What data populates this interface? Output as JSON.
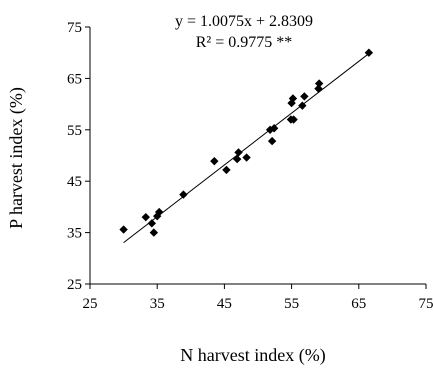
{
  "chart_data": {
    "type": "scatter",
    "xlabel": "N harvest index (%)",
    "ylabel": "P harvest index (%)",
    "xlim": [
      25,
      75
    ],
    "ylim": [
      25,
      75
    ],
    "xticks": [
      "25",
      "35",
      "45",
      "55",
      "65",
      "75"
    ],
    "yticks": [
      "25",
      "35",
      "45",
      "55",
      "65",
      "75"
    ],
    "grid": false,
    "legend": "none",
    "annotations": {
      "equation": "y = 1.0075x + 2.8309",
      "r2": "R² = 0.9775 **"
    },
    "series": [
      {
        "marker": "diamond",
        "color": "#000000",
        "points": [
          {
            "x": 30.0,
            "y": 35.6
          },
          {
            "x": 33.3,
            "y": 38.0
          },
          {
            "x": 34.2,
            "y": 36.8
          },
          {
            "x": 34.5,
            "y": 35.0
          },
          {
            "x": 35.0,
            "y": 38.2
          },
          {
            "x": 35.3,
            "y": 39.0
          },
          {
            "x": 38.9,
            "y": 42.4
          },
          {
            "x": 43.5,
            "y": 48.9
          },
          {
            "x": 45.3,
            "y": 47.2
          },
          {
            "x": 46.9,
            "y": 49.3
          },
          {
            "x": 47.1,
            "y": 50.6
          },
          {
            "x": 48.3,
            "y": 49.6
          },
          {
            "x": 51.8,
            "y": 55.0
          },
          {
            "x": 52.1,
            "y": 52.8
          },
          {
            "x": 52.4,
            "y": 55.3
          },
          {
            "x": 54.9,
            "y": 57.0
          },
          {
            "x": 55.0,
            "y": 60.2
          },
          {
            "x": 55.2,
            "y": 61.1
          },
          {
            "x": 55.3,
            "y": 57.0
          },
          {
            "x": 56.6,
            "y": 59.7
          },
          {
            "x": 56.9,
            "y": 61.5
          },
          {
            "x": 59.0,
            "y": 63.0
          },
          {
            "x": 59.1,
            "y": 64.0
          },
          {
            "x": 66.5,
            "y": 70.0
          }
        ]
      }
    ],
    "trendline": {
      "slope": 1.0075,
      "intercept": 2.8309,
      "x_range": [
        30.0,
        66.5
      ],
      "color": "#000000"
    }
  }
}
